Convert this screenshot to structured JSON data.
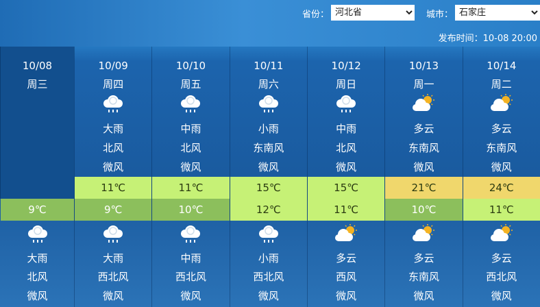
{
  "header": {
    "province_label": "省份：",
    "province": "河北省",
    "city_label": "城市：",
    "city": "石家庄",
    "publish_time": "发布时间：10-08 20:00"
  },
  "colors": {
    "low_green": "#8cbf5c",
    "light_green": "#c6f176",
    "yellow": "#f0d76c",
    "today_bg": "#124f8e"
  },
  "days": [
    {
      "date": "10/08",
      "week": "周三",
      "day_icon": "",
      "day_weather": "",
      "day_wind": "",
      "day_force": "",
      "high": "",
      "high_color": "",
      "low": "9℃",
      "low_color": "#8cbf5c",
      "low_text": "#ffffff",
      "night_icon": "rain-icon",
      "night_weather": "大雨",
      "night_wind": "北风",
      "night_force": "微风"
    },
    {
      "date": "10/09",
      "week": "周四",
      "day_icon": "rain-icon",
      "day_weather": "大雨",
      "day_wind": "北风",
      "day_force": "微风",
      "high": "11℃",
      "high_color": "#c6f176",
      "low": "9℃",
      "low_color": "#8cbf5c",
      "low_text": "#ffffff",
      "night_icon": "rain-icon",
      "night_weather": "大雨",
      "night_wind": "西北风",
      "night_force": "微风"
    },
    {
      "date": "10/10",
      "week": "周五",
      "day_icon": "rain-icon",
      "day_weather": "中雨",
      "day_wind": "北风",
      "day_force": "微风",
      "high": "11℃",
      "high_color": "#c6f176",
      "low": "10℃",
      "low_color": "#8cbf5c",
      "low_text": "#ffffff",
      "night_icon": "rain-icon",
      "night_weather": "中雨",
      "night_wind": "西北风",
      "night_force": "微风"
    },
    {
      "date": "10/11",
      "week": "周六",
      "day_icon": "rain-icon",
      "day_weather": "小雨",
      "day_wind": "东南风",
      "day_force": "微风",
      "high": "15℃",
      "high_color": "#c6f176",
      "low": "12℃",
      "low_color": "#c6f176",
      "low_text": "#2a3a10",
      "night_icon": "rain-icon",
      "night_weather": "小雨",
      "night_wind": "西北风",
      "night_force": "微风"
    },
    {
      "date": "10/12",
      "week": "周日",
      "day_icon": "rain-icon",
      "day_weather": "中雨",
      "day_wind": "北风",
      "day_force": "微风",
      "high": "15℃",
      "high_color": "#c6f176",
      "low": "11℃",
      "low_color": "#c6f176",
      "low_text": "#2a3a10",
      "night_icon": "partly-cloudy-icon",
      "night_weather": "多云",
      "night_wind": "西风",
      "night_force": "微风"
    },
    {
      "date": "10/13",
      "week": "周一",
      "day_icon": "partly-cloudy-icon",
      "day_weather": "多云",
      "day_wind": "东南风",
      "day_force": "微风",
      "high": "21℃",
      "high_color": "#f0d76c",
      "low": "10℃",
      "low_color": "#8cbf5c",
      "low_text": "#ffffff",
      "night_icon": "partly-cloudy-icon",
      "night_weather": "多云",
      "night_wind": "东南风",
      "night_force": "微风"
    },
    {
      "date": "10/14",
      "week": "周二",
      "day_icon": "partly-cloudy-icon",
      "day_weather": "多云",
      "day_wind": "东南风",
      "day_force": "微风",
      "high": "24℃",
      "high_color": "#f0d76c",
      "low": "11℃",
      "low_color": "#c6f176",
      "low_text": "#2a3a10",
      "night_icon": "partly-cloudy-icon",
      "night_weather": "多云",
      "night_wind": "西北风",
      "night_force": "微风"
    }
  ]
}
